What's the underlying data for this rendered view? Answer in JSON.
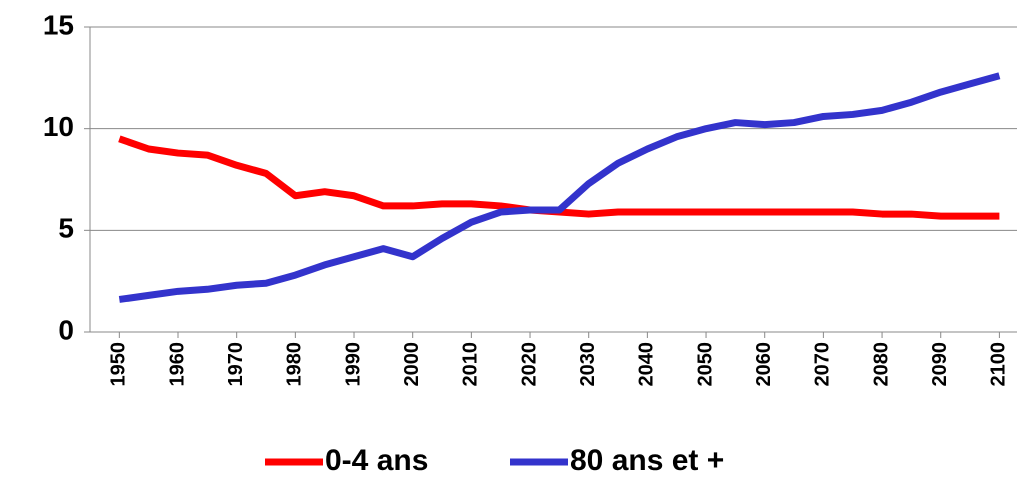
{
  "chart_data": {
    "type": "line",
    "x": [
      1950,
      1955,
      1960,
      1965,
      1970,
      1975,
      1980,
      1985,
      1990,
      1995,
      2000,
      2005,
      2010,
      2015,
      2020,
      2025,
      2030,
      2035,
      2040,
      2045,
      2050,
      2055,
      2060,
      2065,
      2070,
      2075,
      2080,
      2085,
      2090,
      2095,
      2100
    ],
    "series": [
      {
        "name": "0-4 ans",
        "color": "#ff0000",
        "values": [
          9.5,
          9.0,
          8.8,
          8.7,
          8.2,
          7.8,
          6.7,
          6.9,
          6.7,
          6.2,
          6.2,
          6.3,
          6.3,
          6.2,
          6.0,
          5.9,
          5.8,
          5.9,
          5.9,
          5.9,
          5.9,
          5.9,
          5.9,
          5.9,
          5.9,
          5.9,
          5.8,
          5.8,
          5.7,
          5.7,
          5.7
        ]
      },
      {
        "name": "80 ans et +",
        "color": "#3333cc",
        "values": [
          1.6,
          1.8,
          2.0,
          2.1,
          2.3,
          2.4,
          2.8,
          3.3,
          3.7,
          4.1,
          3.7,
          4.6,
          5.4,
          5.9,
          6.0,
          6.0,
          7.3,
          8.3,
          9.0,
          9.6,
          10.0,
          10.3,
          10.2,
          10.3,
          10.6,
          10.7,
          10.9,
          11.3,
          11.8,
          12.2,
          12.6
        ]
      }
    ],
    "xlim": [
      1945,
      2103
    ],
    "xticks": [
      1950,
      1960,
      1970,
      1980,
      1990,
      2000,
      2010,
      2020,
      2030,
      2040,
      2050,
      2060,
      2070,
      2080,
      2090,
      2100
    ],
    "ylim": [
      0,
      15
    ],
    "yticks": [
      0,
      5,
      10,
      15
    ],
    "grid": true,
    "legend": "bottom"
  }
}
